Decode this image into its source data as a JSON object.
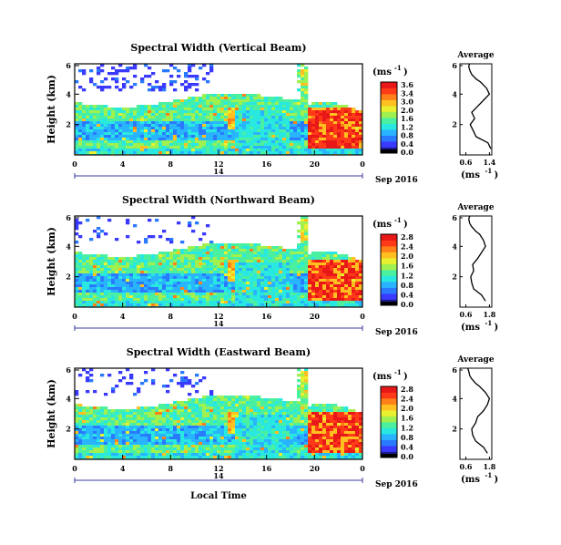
{
  "chart_data": {
    "type": "heatmap",
    "unit_label": "(ms",
    "unit_exp": "-1",
    "unit_close": ")",
    "date_label": "Sep 2016",
    "date_mark": "14",
    "xlabel": "Local Time",
    "ylabel": "Height (km)",
    "x_ticks": [
      "0",
      "4",
      "8",
      "12",
      "16",
      "20",
      "0"
    ],
    "y_ticks": [
      "6",
      "4",
      "2"
    ],
    "avg_title": "Average",
    "avg_unit": "(ms",
    "avg_y_ticks": [
      "6",
      "4",
      "2"
    ],
    "colorscale": [
      "#1a1a8a",
      "#3a3aff",
      "#2a7aff",
      "#28b4ff",
      "#28e8e0",
      "#4af0a0",
      "#a0f050",
      "#e8f030",
      "#ffc020",
      "#ff8018",
      "#ff3a18",
      "#e81818"
    ],
    "panels": [
      {
        "title": "Spectral Width (Vertical Beam)",
        "colorbar_ticks": [
          "3.6",
          "3.4",
          "3.0",
          "2.0",
          "1.6",
          "1.2",
          "0.8",
          "0.4",
          "0.0"
        ],
        "avg_x_ticks": [
          "0.6",
          "1.4"
        ],
        "avg_profile": {
          "width": [
            1.45,
            1.35,
            0.95,
            0.85,
            0.75,
            0.9,
            0.8,
            1.0,
            1.2,
            1.4,
            1.3,
            1.1,
            0.95,
            0.8,
            0.75,
            0.7,
            0.72
          ],
          "height": [
            0.4,
            0.8,
            1.2,
            1.6,
            2.0,
            2.4,
            2.8,
            3.2,
            3.6,
            4.0,
            4.4,
            4.8,
            5.0,
            5.3,
            5.5,
            5.8,
            6.0
          ]
        }
      },
      {
        "title": "Spectral Width (Northward Beam)",
        "colorbar_ticks": [
          "2.8",
          "2.4",
          "2.0",
          "1.6",
          "1.2",
          "0.8",
          "0.4",
          "0.0"
        ],
        "avg_x_ticks": [
          "0.6",
          "1.8"
        ],
        "avg_profile": {
          "width": [
            1.6,
            1.4,
            1.0,
            0.9,
            0.85,
            1.0,
            0.95,
            1.2,
            1.4,
            1.6,
            1.5,
            1.3,
            1.1,
            0.9,
            0.8,
            0.75,
            0.8
          ],
          "height": [
            0.4,
            0.8,
            1.2,
            1.6,
            2.0,
            2.4,
            2.8,
            3.2,
            3.6,
            4.0,
            4.4,
            4.8,
            5.0,
            5.3,
            5.5,
            5.8,
            6.0
          ]
        }
      },
      {
        "title": "Spectral Width (Eastward Beam)",
        "colorbar_ticks": [
          "2.8",
          "2.4",
          "2.0",
          "1.6",
          "1.2",
          "0.8",
          "0.4",
          "0.0"
        ],
        "avg_x_ticks": [
          "0.6",
          "1.8"
        ],
        "avg_profile": {
          "width": [
            1.7,
            1.5,
            1.1,
            0.95,
            0.9,
            1.1,
            1.2,
            1.5,
            1.7,
            1.8,
            1.6,
            1.3,
            1.1,
            0.9,
            0.8,
            0.75,
            0.7
          ],
          "height": [
            0.4,
            0.8,
            1.2,
            1.6,
            2.0,
            2.4,
            2.8,
            3.2,
            3.6,
            4.0,
            4.4,
            4.8,
            5.0,
            5.3,
            5.5,
            5.8,
            6.0
          ]
        }
      }
    ]
  }
}
